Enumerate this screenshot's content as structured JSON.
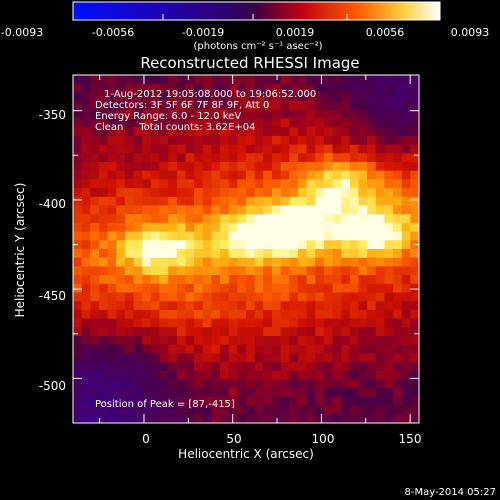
{
  "colorbar": {
    "tick_labels": [
      "-0.0093",
      "-0.0056",
      "-0.0019",
      "0.0019",
      "0.0056",
      "0.0093"
    ],
    "unit_label": "(photons cm⁻² s⁻¹ asec⁻²)",
    "range": [
      -0.0093,
      0.0093
    ]
  },
  "chart_data": {
    "type": "heatmap",
    "title": "Reconstructed RHESSI Image",
    "xlabel": "Heliocentric X (arcsec)",
    "ylabel": "Heliocentric Y (arcsec)",
    "xlim": [
      -40,
      155
    ],
    "ylim": [
      -525,
      -330
    ],
    "x_ticks": [
      0,
      50,
      100,
      150
    ],
    "y_ticks": [
      -350,
      -400,
      -450,
      -500
    ],
    "colormap": "hot-with-blue-negative",
    "annotations": [
      "1-Aug-2012 19:05:08.000 to 19:06:52.000",
      "Detectors: 3F 5F 6F 7F 8F 9F, Att 0",
      "Energy Range: 6.0 - 12.0 keV",
      "Clean     Total counts: 3.62E+04"
    ],
    "peak_label": "Position of Peak = [87,-415]",
    "peak": [
      87,
      -415
    ],
    "sources": [
      {
        "x": 87,
        "y": -415,
        "amplitude": 0.0093
      },
      {
        "x": 8,
        "y": -427,
        "amplitude": 0.0078
      },
      {
        "x": 130,
        "y": -418,
        "amplitude": 0.0083
      },
      {
        "x": 60,
        "y": -420,
        "amplitude": 0.0072
      },
      {
        "x": 110,
        "y": -392,
        "amplitude": 0.0064
      }
    ]
  },
  "footer": {
    "date": "8-May-2014 05:27"
  }
}
